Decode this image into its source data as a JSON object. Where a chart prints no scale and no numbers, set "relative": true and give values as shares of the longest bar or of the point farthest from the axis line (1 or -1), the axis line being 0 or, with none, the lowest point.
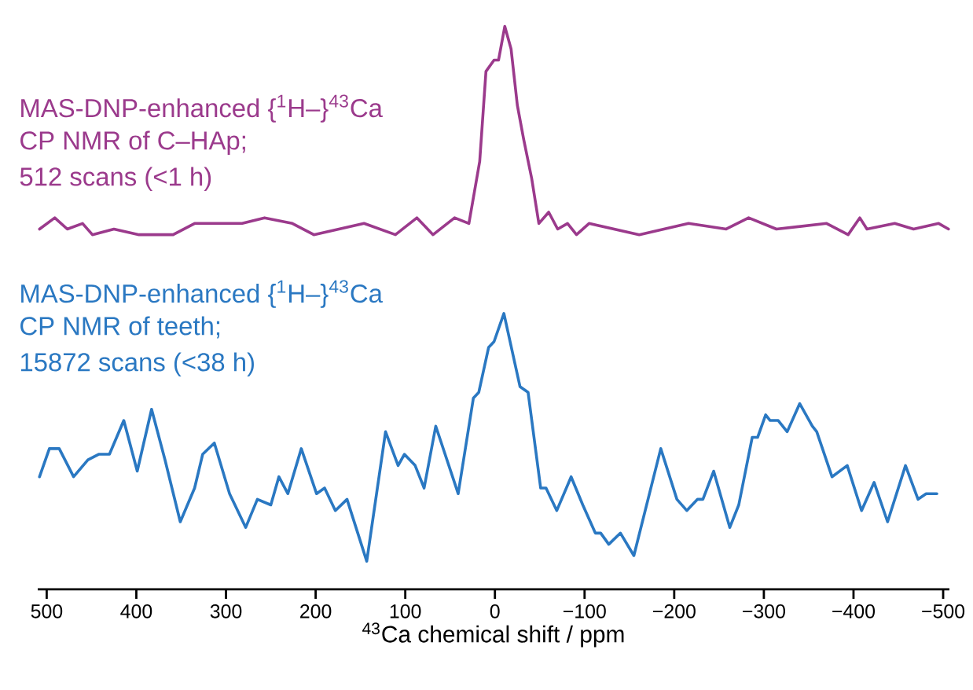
{
  "chart_data": {
    "type": "line",
    "relative": true,
    "xlabel": "$^{43}$Ca chemical shift / ppm",
    "xlim": [
      510,
      -507
    ],
    "xticks": [
      500,
      400,
      300,
      200,
      100,
      0,
      {
        "value": -100,
        "label": "−100"
      },
      {
        "value": -200,
        "label": "−200"
      },
      {
        "value": -300,
        "label": "−300"
      },
      {
        "value": -400,
        "label": "−400"
      },
      {
        "value": -500,
        "label": "−500"
      }
    ],
    "annotations": [
      "MAS-DNP-enhanced {$^{1}$H–}$^{43}$Ca",
      "CP NMR of C–HAp;",
      "512 scans (<1 h)",
      "MAS-DNP-enhanced {$^{1}$H–}$^{43}$Ca",
      "CP NMR of teeth;",
      "15872 scans (<38 h)"
    ],
    "series": [
      {
        "color": "#9b3a8c",
        "x": [
          508,
          491,
          477,
          460,
          449,
          425,
          397,
          359,
          335,
          306,
          282,
          257,
          226,
          202,
          146,
          111,
          87,
          69,
          45,
          29,
          17,
          10,
          1,
          -4,
          -11,
          -18,
          -25,
          -32,
          -41,
          -49,
          -60,
          -70,
          -81,
          -91,
          -105,
          -161,
          -216,
          -258,
          -283,
          -314,
          -370,
          -394,
          -407,
          -415,
          -446,
          -467,
          -495,
          -506
        ],
        "values": [
          0.64,
          0.66,
          0.64,
          0.65,
          0.63,
          0.64,
          0.63,
          0.63,
          0.65,
          0.65,
          0.65,
          0.66,
          0.65,
          0.63,
          0.65,
          0.63,
          0.66,
          0.63,
          0.66,
          0.65,
          0.76,
          0.92,
          0.94,
          0.94,
          1,
          0.96,
          0.86,
          0.8,
          0.73,
          0.65,
          0.67,
          0.64,
          0.65,
          0.63,
          0.65,
          0.63,
          0.65,
          0.64,
          0.66,
          0.64,
          0.65,
          0.63,
          0.66,
          0.64,
          0.65,
          0.64,
          0.65,
          0.64
        ]
      },
      {
        "color": "#2a78c2",
        "x": [
          508,
          497,
          486,
          470,
          454,
          442,
          430,
          414,
          399,
          383,
          368,
          351,
          335,
          326,
          313,
          296,
          278,
          265,
          250,
          241,
          231,
          216,
          199,
          190,
          178,
          165,
          143,
          122,
          108,
          101,
          89,
          79,
          66,
          41,
          24,
          18,
          7,
          1,
          -10,
          -28,
          -37,
          -51,
          -57,
          -69,
          -85,
          -98,
          -112,
          -118,
          -127,
          -140,
          -155,
          -185,
          -203,
          -214,
          -226,
          -232,
          -244,
          -262,
          -272,
          -287,
          -293,
          -302,
          -307,
          -316,
          -326,
          -340,
          -354,
          -359,
          -376,
          -393,
          -409,
          -423,
          -438,
          -458,
          -472,
          -481,
          -493
        ],
        "values": [
          0.2,
          0.25,
          0.25,
          0.2,
          0.23,
          0.24,
          0.24,
          0.3,
          0.21,
          0.32,
          0.23,
          0.12,
          0.18,
          0.24,
          0.26,
          0.17,
          0.11,
          0.16,
          0.15,
          0.2,
          0.17,
          0.25,
          0.17,
          0.18,
          0.14,
          0.16,
          0.05,
          0.28,
          0.22,
          0.24,
          0.22,
          0.18,
          0.29,
          0.17,
          0.34,
          0.35,
          0.43,
          0.44,
          0.49,
          0.36,
          0.35,
          0.18,
          0.18,
          0.14,
          0.2,
          0.15,
          0.1,
          0.1,
          0.08,
          0.1,
          0.06,
          0.25,
          0.16,
          0.14,
          0.16,
          0.16,
          0.21,
          0.11,
          0.15,
          0.27,
          0.27,
          0.31,
          0.3,
          0.3,
          0.28,
          0.33,
          0.29,
          0.28,
          0.2,
          0.22,
          0.14,
          0.19,
          0.12,
          0.22,
          0.16,
          0.17,
          0.17
        ]
      }
    ]
  }
}
